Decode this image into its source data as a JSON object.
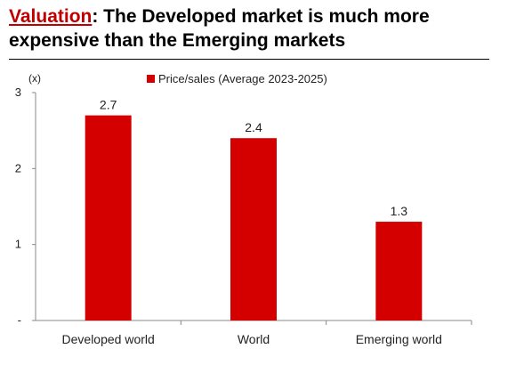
{
  "header": {
    "title_lead": "Valuation",
    "title_rest": ": The Developed market is much more expensive than the Emerging markets"
  },
  "colors": {
    "bar": "#d40000",
    "accent": "#c00000",
    "axis": "#888888"
  },
  "chart_data": {
    "type": "bar",
    "categories": [
      "Developed world",
      "World",
      "Emerging world"
    ],
    "series": [
      {
        "name": "Price/sales (Average 2023-2025)",
        "values": [
          2.7,
          2.4,
          1.3
        ]
      }
    ],
    "data_labels": [
      "2.7",
      "2.4",
      "1.3"
    ],
    "y_ticks": [
      "-",
      "1",
      "2",
      "3"
    ],
    "y_unit": "(x)",
    "ylim": [
      0,
      3
    ],
    "grid": false,
    "legend_position": "top"
  }
}
